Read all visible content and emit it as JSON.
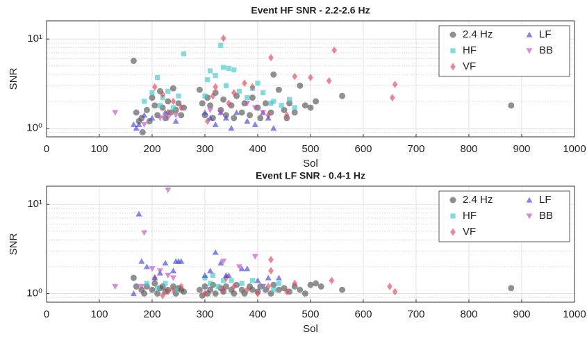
{
  "chart_data": [
    {
      "type": "scatter",
      "title": "Event HF SNR - 2.2-2.6 Hz",
      "xlabel": "Sol",
      "ylabel": "SNR",
      "xlim": [
        0,
        1000
      ],
      "xticks": [
        0,
        100,
        200,
        300,
        400,
        500,
        600,
        700,
        800,
        900,
        1000
      ],
      "ylim": [
        0.8,
        16
      ],
      "log_y": true,
      "yticks": [
        {
          "value": 1,
          "label": "10⁰"
        },
        {
          "value": 10,
          "label": "10¹"
        }
      ],
      "yminor_ticks": [
        0.9,
        2,
        3,
        4,
        5,
        6,
        7,
        8,
        9
      ],
      "grid": true,
      "legend": "upper right",
      "series": [
        {
          "name": "2.4 Hz",
          "color": "#555555",
          "marker": "circle",
          "x": [
            165,
            170,
            175,
            180,
            182,
            190,
            195,
            200,
            205,
            210,
            215,
            220,
            225,
            230,
            235,
            240,
            245,
            250,
            255,
            260,
            290,
            295,
            300,
            305,
            310,
            315,
            320,
            330,
            335,
            340,
            350,
            355,
            360,
            370,
            375,
            385,
            390,
            400,
            405,
            415,
            425,
            430,
            440,
            450,
            455,
            460,
            470,
            480,
            490,
            500,
            510,
            560,
            880
          ],
          "y": [
            5.7,
            1.5,
            1.2,
            1.3,
            0.9,
            1.6,
            1.2,
            2.2,
            1.8,
            1.4,
            2.6,
            1.7,
            1.3,
            2.0,
            1.5,
            2.8,
            1.6,
            1.9,
            1.4,
            1.7,
            2.7,
            1.9,
            1.4,
            2.2,
            1.8,
            1.3,
            2.5,
            1.6,
            2.1,
            1.4,
            1.8,
            1.3,
            2.3,
            1.5,
            1.9,
            1.4,
            2.2,
            1.7,
            1.3,
            1.9,
            1.5,
            4.0,
            2.7,
            1.6,
            1.3,
            1.9,
            1.5,
            3.0,
            1.8,
            1.7,
            2.0,
            2.3,
            1.8
          ]
        },
        {
          "name": "HF",
          "color": "#40c8c8",
          "marker": "square",
          "x": [
            185,
            200,
            210,
            215,
            220,
            230,
            240,
            250,
            260,
            300,
            305,
            310,
            320,
            330,
            335,
            340,
            345,
            355,
            365,
            380,
            390,
            400,
            410,
            425,
            430,
            445,
            460,
            470
          ],
          "y": [
            2.0,
            2.5,
            3.7,
            1.8,
            2.2,
            2.6,
            1.7,
            2.3,
            6.8,
            2.3,
            3.5,
            4.4,
            3.9,
            8.5,
            4.8,
            3.0,
            4.7,
            4.5,
            2.6,
            2.2,
            2.8,
            3.2,
            2.5,
            1.9,
            2.0,
            1.8,
            2.1,
            1.7
          ]
        },
        {
          "name": "VF",
          "color": "#e0455e",
          "marker": "diamond",
          "x": [
            205,
            220,
            230,
            240,
            255,
            305,
            315,
            320,
            335,
            345,
            355,
            375,
            390,
            420,
            425,
            455,
            470,
            500,
            535,
            545,
            655,
            660
          ],
          "y": [
            2.9,
            2.4,
            1.5,
            2.0,
            1.7,
            1.2,
            2.3,
            2.9,
            10.2,
            1.9,
            2.5,
            3.2,
            2.9,
            1.4,
            6.2,
            1.4,
            3.8,
            3.7,
            3.4,
            7.5,
            2.2,
            3.1
          ]
        },
        {
          "name": "LF",
          "color": "#4545d8",
          "marker": "triangle-up",
          "x": [
            165,
            170,
            175,
            185,
            200,
            225,
            245,
            300,
            310,
            320,
            330,
            340,
            350,
            360,
            380,
            395,
            410,
            420,
            430
          ],
          "y": [
            1.1,
            1.0,
            1.1,
            1.4,
            1.3,
            1.5,
            1.2,
            1.5,
            1.3,
            1.1,
            1.5,
            1.3,
            1.0,
            1.5,
            1.2,
            1.1,
            1.5,
            1.3,
            1.0
          ]
        },
        {
          "name": "BB",
          "color": "#c050c0",
          "marker": "triangle-down",
          "x": [
            130,
            185,
            215,
            230,
            245,
            310,
            330,
            380,
            395,
            410
          ],
          "y": [
            1.5,
            1.1,
            1.3,
            1.3,
            1.4,
            1.6,
            1.5,
            1.9,
            1.7,
            1.5
          ]
        }
      ]
    },
    {
      "type": "scatter",
      "title": "Event LF SNR - 0.4-1 Hz",
      "xlabel": "Sol",
      "ylabel": "SNR",
      "xlim": [
        0,
        1000
      ],
      "xticks": [
        0,
        100,
        200,
        300,
        400,
        500,
        600,
        700,
        800,
        900,
        1000
      ],
      "ylim": [
        0.8,
        16
      ],
      "log_y": true,
      "yticks": [
        {
          "value": 1,
          "label": "10⁰"
        },
        {
          "value": 10,
          "label": "10¹"
        }
      ],
      "yminor_ticks": [
        0.9,
        2,
        3,
        4,
        5,
        6,
        7,
        8,
        9
      ],
      "grid": true,
      "legend": "upper right",
      "series": [
        {
          "name": "2.4 Hz",
          "color": "#555555",
          "marker": "circle",
          "x": [
            165,
            170,
            180,
            185,
            190,
            200,
            205,
            210,
            215,
            220,
            225,
            230,
            240,
            245,
            250,
            255,
            260,
            290,
            295,
            300,
            305,
            310,
            315,
            320,
            330,
            335,
            340,
            350,
            355,
            360,
            370,
            375,
            385,
            390,
            400,
            405,
            415,
            425,
            430,
            440,
            450,
            460,
            470,
            480,
            490,
            500,
            510,
            520,
            560,
            880
          ],
          "y": [
            1.5,
            1.2,
            1.1,
            1.0,
            1.2,
            1.1,
            1.3,
            1.0,
            1.15,
            1.2,
            1.05,
            1.1,
            1.2,
            1.0,
            1.15,
            1.1,
            1.05,
            1.1,
            0.95,
            1.2,
            1.0,
            1.1,
            1.25,
            1.0,
            1.15,
            1.05,
            1.2,
            1.1,
            1.0,
            1.25,
            1.1,
            1.0,
            1.2,
            1.1,
            1.05,
            1.2,
            1.1,
            1.0,
            1.25,
            1.1,
            1.15,
            1.05,
            1.2,
            1.1,
            1.0,
            1.25,
            1.3,
            1.2,
            1.1,
            1.15
          ]
        },
        {
          "name": "HF",
          "color": "#40c8c8",
          "marker": "square",
          "x": [
            190,
            210,
            225,
            245,
            300,
            310,
            315,
            325,
            335,
            350,
            370,
            390,
            410,
            430,
            440
          ],
          "y": [
            1.3,
            1.15,
            1.3,
            1.1,
            1.5,
            1.3,
            1.6,
            1.2,
            1.4,
            1.4,
            1.3,
            1.4,
            1.2,
            1.1,
            1.3
          ]
        },
        {
          "name": "VF",
          "color": "#e0455e",
          "marker": "diamond",
          "x": [
            205,
            220,
            230,
            240,
            255,
            300,
            335,
            340,
            355,
            380,
            400,
            420,
            425,
            425,
            455,
            470,
            540,
            650,
            660
          ],
          "y": [
            1.5,
            0.95,
            1.05,
            1.1,
            1.2,
            1.0,
            1.1,
            1.5,
            1.2,
            1.1,
            1.0,
            1.2,
            2.4,
            1.8,
            1.05,
            1.3,
            1.4,
            1.2,
            1.05
          ]
        },
        {
          "name": "LF",
          "color": "#4545d8",
          "marker": "triangle-up",
          "x": [
            165,
            175,
            180,
            190,
            205,
            215,
            225,
            240,
            245,
            250,
            255,
            300,
            310,
            320,
            330,
            340,
            345,
            370,
            380,
            400,
            420,
            440
          ],
          "y": [
            1.0,
            7.8,
            2.3,
            2.0,
            1.5,
            1.7,
            2.2,
            1.8,
            2.3,
            2.3,
            2.3,
            1.6,
            1.8,
            2.9,
            2.2,
            1.6,
            1.6,
            1.9,
            1.9,
            1.4,
            1.5,
            1.5
          ]
        },
        {
          "name": "BB",
          "color": "#c050c0",
          "marker": "triangle-down",
          "x": [
            130,
            180,
            185,
            200,
            215,
            230,
            230,
            240,
            335,
            365,
            395,
            410
          ],
          "y": [
            1.2,
            1.2,
            4.8,
            1.9,
            1.8,
            14.5,
            1.6,
            1.5,
            2.3,
            2.0,
            2.6,
            1.2
          ]
        }
      ]
    }
  ]
}
